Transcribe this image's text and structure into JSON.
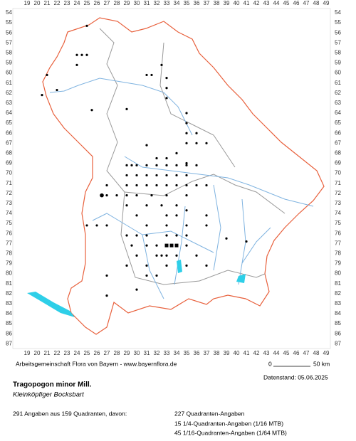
{
  "grid": {
    "columns": [
      19,
      20,
      21,
      22,
      23,
      24,
      25,
      26,
      27,
      28,
      29,
      30,
      31,
      32,
      33,
      34,
      35,
      36,
      37,
      38,
      39,
      40,
      41,
      42,
      43,
      44,
      45,
      46,
      47,
      48,
      49
    ],
    "rows": [
      54,
      55,
      56,
      57,
      58,
      59,
      60,
      61,
      62,
      63,
      64,
      65,
      66,
      67,
      68,
      69,
      70,
      71,
      72,
      73,
      74,
      75,
      76,
      77,
      78,
      79,
      80,
      81,
      82,
      83,
      84,
      85,
      86,
      87
    ]
  },
  "footer": {
    "credit": "Arbeitsgemeinschaft Flora von Bayern - www.bayernflora.de",
    "scale_zero": "0",
    "scale_end": "50 km",
    "date": "Datenstand: 05.06.2025",
    "species": "Tragopogon minor Mill.",
    "common_name": "Kleinköpfiger Bocksbart",
    "summary": "291 Angaben aus 159 Quadranten, davon:",
    "counts": [
      "227 Quadranten-Angaben",
      "15 1/4-Quadranten-Angaben (1/16 MTB)",
      "45 1/16-Quadranten-Angaben (1/64 MTB)"
    ]
  }
}
